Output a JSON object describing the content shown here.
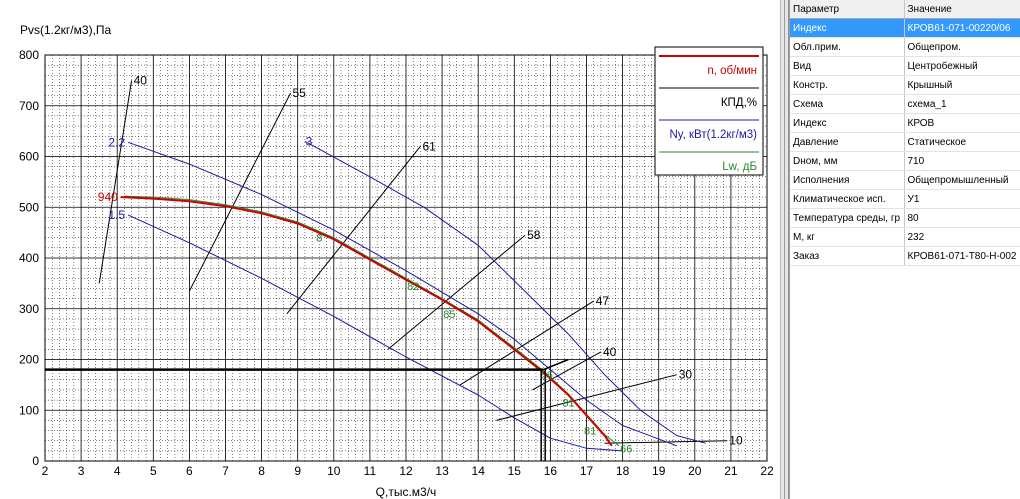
{
  "chart_data": {
    "type": "line",
    "ylabel": "Pvs(1.2кг/м3),Па",
    "xlabel": "Q,тыс.м3/ч",
    "xlim": [
      2,
      22
    ],
    "ylim": [
      0,
      800
    ],
    "x_ticks": [
      2,
      3,
      4,
      5,
      6,
      7,
      8,
      9,
      10,
      11,
      12,
      13,
      14,
      15,
      16,
      17,
      18,
      19,
      20,
      21,
      22
    ],
    "y_ticks": [
      0,
      100,
      200,
      300,
      400,
      500,
      600,
      700,
      800
    ],
    "legend": {
      "placement": "top-right",
      "entries": [
        {
          "label": "n, об/мин",
          "color": "#cc0000"
        },
        {
          "label": "КПД,%",
          "color": "#000000"
        },
        {
          "label": "Ny, кВт(1.2кг/м3)",
          "color": "#1a1aa0"
        },
        {
          "label": "Lw, дБ",
          "color": "#2a8a2a"
        }
      ]
    },
    "operating_point": {
      "x": 15.8,
      "y": 180
    },
    "series": [
      {
        "name": "n, об/мин",
        "label": "940",
        "color": "#cc0000",
        "width": 2,
        "x": [
          4.1,
          5,
          6,
          7,
          8,
          9,
          10,
          11,
          12,
          13,
          14,
          15,
          15.8,
          16.5,
          17,
          17.5,
          17.7
        ],
        "y": [
          520,
          517,
          512,
          502,
          488,
          468,
          437,
          397,
          357,
          318,
          275,
          220,
          175,
          130,
          90,
          50,
          30
        ]
      },
      {
        "name": "Lw, дБ",
        "color": "#2a8a2a",
        "width": 1,
        "x": [
          4.2,
          5,
          6,
          7,
          8,
          9,
          10,
          11,
          12,
          13,
          14,
          15,
          15.8,
          16.5,
          17,
          17.5,
          17.9
        ],
        "y": [
          522,
          520,
          515,
          505,
          491,
          471,
          440,
          400,
          360,
          320,
          278,
          223,
          178,
          132,
          92,
          52,
          30
        ]
      },
      {
        "name": "2.2",
        "label": "2.2",
        "color": "#1a1aa0",
        "width": 1,
        "x": [
          4.3,
          6,
          8,
          10,
          12,
          14,
          15,
          16,
          17,
          18,
          19.5
        ],
        "y": [
          628,
          585,
          525,
          455,
          375,
          290,
          240,
          180,
          120,
          70,
          30
        ]
      },
      {
        "name": "1.5",
        "label": "1.5",
        "color": "#1a1aa0",
        "width": 1,
        "x": [
          4.3,
          6,
          8,
          10,
          12,
          14,
          15,
          16,
          17,
          18
        ],
        "y": [
          485,
          430,
          360,
          285,
          205,
          130,
          85,
          45,
          25,
          20
        ]
      },
      {
        "name": "3",
        "label": "3",
        "color": "#1a1aa0",
        "width": 1,
        "x": [
          9.2,
          11,
          12.5,
          14,
          15.5,
          16.5,
          17.5,
          18.5,
          19.5,
          20.3
        ],
        "y": [
          630,
          560,
          500,
          425,
          320,
          250,
          170,
          100,
          50,
          35
        ]
      },
      {
        "name": "ray-40a",
        "label": "40",
        "color": "#000000",
        "width": 1,
        "x": [
          3.5,
          4.4
        ],
        "y": [
          350,
          750
        ]
      },
      {
        "name": "ray-55",
        "label": "55",
        "color": "#000000",
        "width": 1,
        "x": [
          6,
          8.8
        ],
        "y": [
          335,
          725
        ]
      },
      {
        "name": "ray-61",
        "label": "61",
        "color": "#000000",
        "width": 1,
        "x": [
          8.7,
          12.4
        ],
        "y": [
          290,
          620
        ]
      },
      {
        "name": "ray-58",
        "label": "58",
        "color": "#000000",
        "width": 1,
        "x": [
          11.5,
          15.3
        ],
        "y": [
          220,
          445
        ]
      },
      {
        "name": "ray-47",
        "label": "47",
        "color": "#000000",
        "width": 1,
        "x": [
          13.5,
          17.2
        ],
        "y": [
          150,
          315
        ]
      },
      {
        "name": "ray-40b",
        "label": "40",
        "color": "#000000",
        "width": 1,
        "x": [
          15.5,
          17.4
        ],
        "y": [
          140,
          215
        ]
      },
      {
        "name": "ray-30",
        "label": "30",
        "color": "#000000",
        "width": 1,
        "x": [
          14.5,
          19.5
        ],
        "y": [
          80,
          170
        ]
      },
      {
        "name": "ray-10",
        "label": "10",
        "color": "#000000",
        "width": 1,
        "x": [
          17.5,
          20.9
        ],
        "y": [
          35,
          40
        ]
      }
    ],
    "efficiency_marks": [
      {
        "label": "8",
        "x": 9.6,
        "y": 440
      },
      {
        "label": "82",
        "x": 12.2,
        "y": 345
      },
      {
        "label": "85",
        "x": 13.2,
        "y": 290
      },
      {
        "label": "86",
        "x": 15.9,
        "y": 170
      },
      {
        "label": "81",
        "x": 16.5,
        "y": 115
      },
      {
        "label": "81",
        "x": 17.1,
        "y": 60
      },
      {
        "label": "66",
        "x": 18.1,
        "y": 25
      }
    ]
  },
  "properties": {
    "header": {
      "param": "Параметр",
      "value": "Значение"
    },
    "rows": [
      {
        "param": "Индекс",
        "value": "КРОВ61-071-00220/06",
        "selected": true
      },
      {
        "param": "Обл.прим.",
        "value": "Общепром."
      },
      {
        "param": "Вид",
        "value": "Центробежный"
      },
      {
        "param": "Констр.",
        "value": "Крышный"
      },
      {
        "param": "Схема",
        "value": "схема_1"
      },
      {
        "param": "Индекс",
        "value": "КРОВ"
      },
      {
        "param": "Давление",
        "value": "Статическое"
      },
      {
        "param": "Dном, мм",
        "value": "710"
      },
      {
        "param": "Исполнения",
        "value": "Общепромышленный"
      },
      {
        "param": "Климатическое исп.",
        "value": "У1"
      },
      {
        "param": "Температура среды, гр",
        "value": "80"
      },
      {
        "param": "M, кг",
        "value": "232"
      },
      {
        "param": "Заказ",
        "value": "КРОВ61-071-Т80-Н-002"
      }
    ]
  }
}
